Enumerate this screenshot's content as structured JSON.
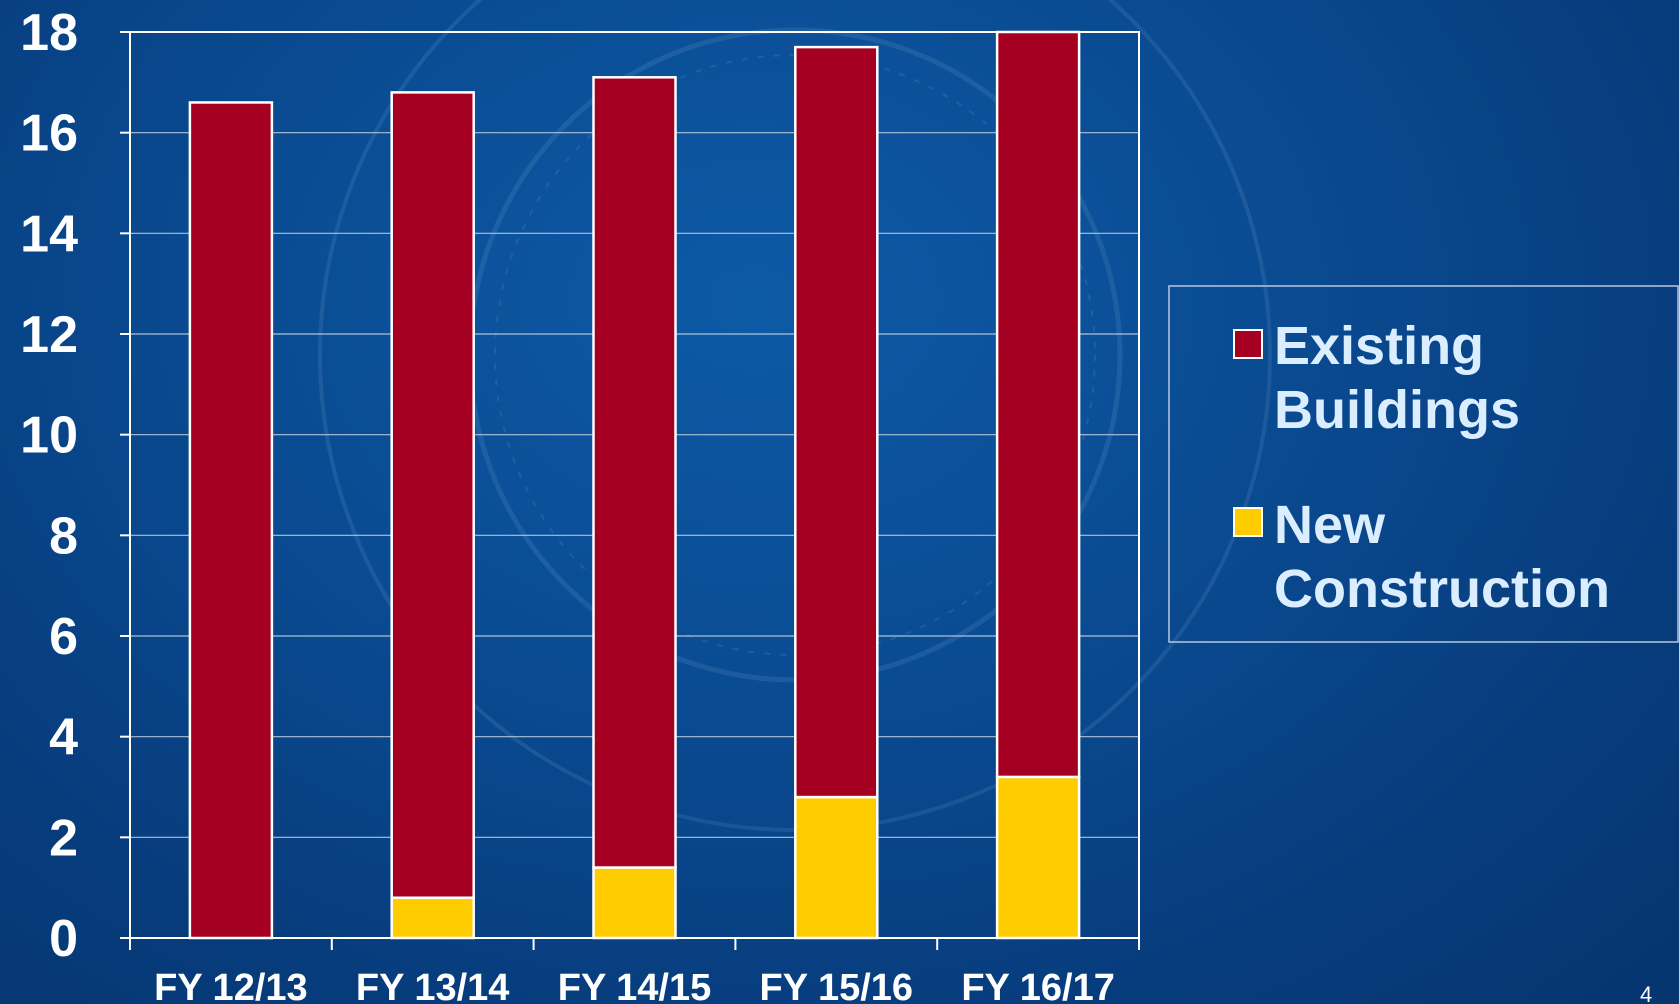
{
  "slide": {
    "page_number": "4"
  },
  "chart_data": {
    "type": "bar",
    "stacked": true,
    "categories": [
      "FY 12/13",
      "FY 13/14",
      "FY 14/15",
      "FY 15/16",
      "FY 16/17"
    ],
    "series": [
      {
        "name": "New Construction",
        "values": [
          0,
          0.8,
          1.4,
          2.8,
          3.2
        ],
        "color": "#ffcc00"
      },
      {
        "name": "Existing Buildings",
        "values": [
          16.6,
          16.0,
          15.7,
          14.9,
          14.8
        ],
        "color": "#a50021"
      }
    ],
    "legend_order": [
      "Existing Buildings",
      "New Construction"
    ],
    "legend_labels": {
      "existing": [
        "Existing",
        "Buildings"
      ],
      "new": [
        "New",
        "Construction"
      ]
    },
    "ylim": [
      0,
      18
    ],
    "yticks": [
      "0",
      "2",
      "4",
      "6",
      "8",
      "10",
      "12",
      "14",
      "16",
      "18"
    ],
    "grid": true,
    "legend_position": "right",
    "title": "",
    "xlabel": "",
    "ylabel": "",
    "colors": {
      "background": "#0a4b92",
      "axis": "#ffffff",
      "gridline": "#c9d6e6",
      "bar_outline": "#ffffff"
    }
  }
}
